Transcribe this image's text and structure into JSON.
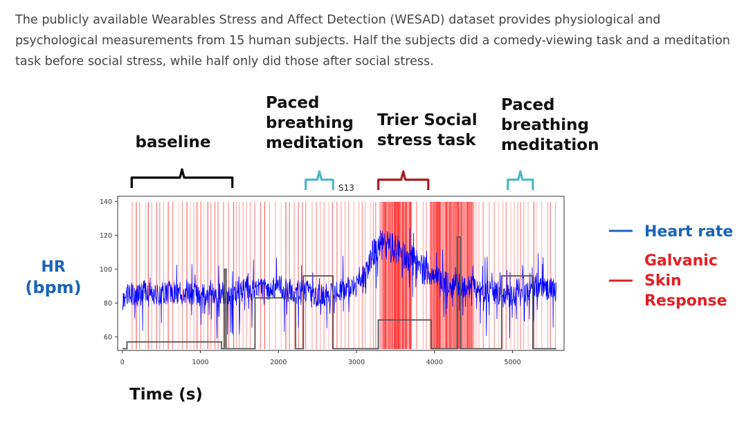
{
  "intro": {
    "text": "The publicly available Wearables Stress and Affect Detection (WESAD) dataset provides physiological and psychological measurements from 15 human subjects. Half the subjects did a comedy-viewing task and a meditation task before social stress, while half only did those after social stress."
  },
  "colors": {
    "heart_rate": "#0000ff",
    "gsr": "#ff0000",
    "hr_legend": "#1a64b8",
    "gsr_legend": "#e31e24",
    "baseline_brace": "#000000",
    "meditation_brace": "#4bb8c4",
    "stress_brace": "#a51c1c",
    "ylabel": "#1a64b8",
    "label_step": "#555555",
    "text": "#444444"
  },
  "chart_data": {
    "type": "line",
    "title": "S13",
    "xlabel": "Time (s)",
    "ylabel": "HR\n(bpm)",
    "xlim": [
      -60,
      5660
    ],
    "ylim": [
      52,
      143
    ],
    "xticks": [
      0,
      1000,
      2000,
      3000,
      4000,
      5000
    ],
    "yticks": [
      60,
      80,
      100,
      120,
      140
    ],
    "grid": false,
    "series": [
      {
        "name": "Heart rate",
        "color": "#0000ff",
        "baseline": [
          [
            0,
            82
          ],
          [
            100,
            86
          ],
          [
            200,
            84
          ],
          [
            300,
            88
          ],
          [
            400,
            86
          ],
          [
            500,
            85
          ],
          [
            600,
            87
          ],
          [
            700,
            85
          ],
          [
            800,
            86
          ],
          [
            900,
            86
          ],
          [
            1000,
            85
          ],
          [
            1100,
            86
          ],
          [
            1200,
            84
          ],
          [
            1300,
            86
          ],
          [
            1400,
            85
          ],
          [
            1500,
            87
          ],
          [
            1600,
            88
          ],
          [
            1700,
            87
          ],
          [
            1800,
            88
          ],
          [
            1900,
            89
          ],
          [
            2000,
            90
          ],
          [
            2100,
            88
          ],
          [
            2200,
            86
          ],
          [
            2300,
            87
          ],
          [
            2400,
            86
          ],
          [
            2500,
            84
          ],
          [
            2600,
            85
          ],
          [
            2700,
            86
          ],
          [
            2800,
            88
          ],
          [
            2900,
            89
          ],
          [
            3000,
            89
          ],
          [
            3100,
            96
          ],
          [
            3200,
            108
          ],
          [
            3300,
            114
          ],
          [
            3400,
            114
          ],
          [
            3500,
            112
          ],
          [
            3600,
            108
          ],
          [
            3700,
            106
          ],
          [
            3800,
            102
          ],
          [
            3900,
            98
          ],
          [
            4000,
            97
          ],
          [
            4100,
            93
          ],
          [
            4200,
            90
          ],
          [
            4300,
            91
          ],
          [
            4400,
            89
          ],
          [
            4500,
            90
          ],
          [
            4600,
            86
          ],
          [
            4700,
            87
          ],
          [
            4800,
            86
          ],
          [
            4900,
            84
          ],
          [
            5000,
            85
          ],
          [
            5100,
            88
          ],
          [
            5200,
            87
          ],
          [
            5300,
            90
          ],
          [
            5400,
            89
          ],
          [
            5500,
            88
          ],
          [
            5560,
            86
          ]
        ]
      },
      {
        "name": "Galvanic Skin Response",
        "color": "#ff0000",
        "type": "event-lines",
        "dense_regions": [
          [
            3300,
            3700
          ],
          [
            3900,
            4500
          ]
        ]
      },
      {
        "name": "condition",
        "color": "#555555",
        "type": "step",
        "points": [
          [
            0,
            53
          ],
          [
            60,
            53
          ],
          [
            60,
            57
          ],
          [
            1270,
            57
          ],
          [
            1270,
            53
          ],
          [
            1310,
            53
          ],
          [
            1310,
            100
          ],
          [
            1330,
            100
          ],
          [
            1330,
            53
          ],
          [
            1700,
            53
          ],
          [
            1700,
            83
          ],
          [
            2220,
            83
          ],
          [
            2220,
            53
          ],
          [
            2320,
            53
          ],
          [
            2320,
            96
          ],
          [
            2700,
            96
          ],
          [
            2700,
            53
          ],
          [
            3280,
            53
          ],
          [
            3280,
            70
          ],
          [
            3960,
            70
          ],
          [
            3960,
            53
          ],
          [
            4290,
            53
          ],
          [
            4290,
            119
          ],
          [
            4330,
            119
          ],
          [
            4330,
            53
          ],
          [
            4860,
            53
          ],
          [
            4860,
            96
          ],
          [
            5260,
            96
          ],
          [
            5260,
            53
          ],
          [
            5560,
            53
          ]
        ]
      }
    ],
    "legend": [
      {
        "label": "Heart rate",
        "color": "#1a64b8"
      },
      {
        "label": "Galvanic\nSkin\nResponse",
        "color": "#e31e24"
      }
    ],
    "legend_placement": "right",
    "annotations": [
      {
        "label": "baseline",
        "x_range": [
          120,
          1410
        ],
        "brace_color": "#000000"
      },
      {
        "label": "Paced\nbreathing\nmeditation",
        "x_range": [
          2350,
          2700
        ],
        "brace_color": "#4bb8c4"
      },
      {
        "label": "Trier Social\nstress task",
        "x_range": [
          3280,
          3920
        ],
        "brace_color": "#a51c1c"
      },
      {
        "label": "Paced\nbreathing\nmeditation",
        "x_range": [
          4940,
          5260
        ],
        "brace_color": "#4bb8c4"
      }
    ]
  }
}
